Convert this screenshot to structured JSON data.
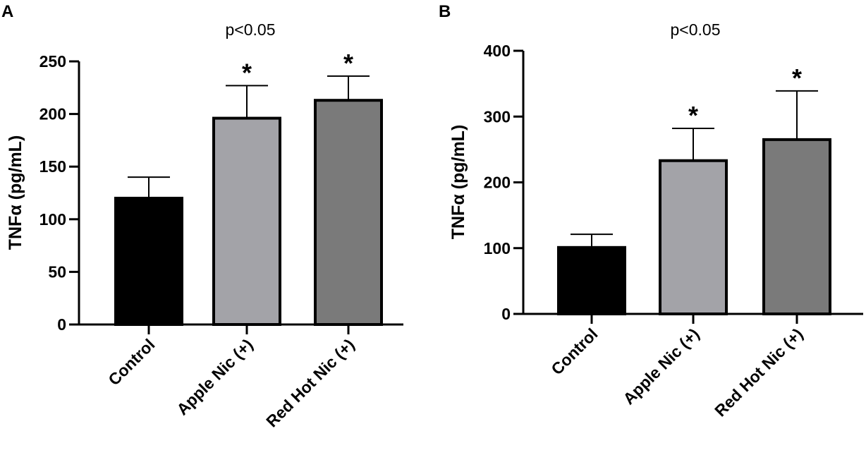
{
  "chart_data": [
    {
      "type": "bar",
      "panel_label": "A",
      "annotation": "p<0.05",
      "ylabel": "TNFα (pg/mL)",
      "categories": [
        "Control",
        "Apple Nic (+)",
        "Red Hot Nic (+)"
      ],
      "values": [
        120,
        196,
        213
      ],
      "errors": [
        20,
        31,
        23
      ],
      "significance": [
        "",
        "*",
        "*"
      ],
      "colors": [
        "#000000",
        "#a3a3a8",
        "#7a7a7a"
      ],
      "ylim": [
        0,
        250
      ],
      "yticks": [
        0,
        50,
        100,
        150,
        200,
        250
      ],
      "ytick_labels": [
        "0",
        "50",
        "100",
        "150",
        "200",
        "250"
      ],
      "grid": false
    },
    {
      "type": "bar",
      "panel_label": "B",
      "annotation": "p<0.05",
      "ylabel": "TNFα (pg/mL)",
      "categories": [
        "Control",
        "Apple Nic (+)",
        "Red Hot Nic (+)"
      ],
      "values": [
        101,
        233,
        265
      ],
      "errors": [
        20,
        49,
        74
      ],
      "significance": [
        "",
        "*",
        "*"
      ],
      "colors": [
        "#000000",
        "#a3a3a8",
        "#7a7a7a"
      ],
      "ylim": [
        0,
        400
      ],
      "yticks": [
        0,
        100,
        200,
        300,
        400
      ],
      "ytick_labels": [
        "0",
        "100",
        "200",
        "300",
        "400"
      ],
      "grid": false
    }
  ]
}
